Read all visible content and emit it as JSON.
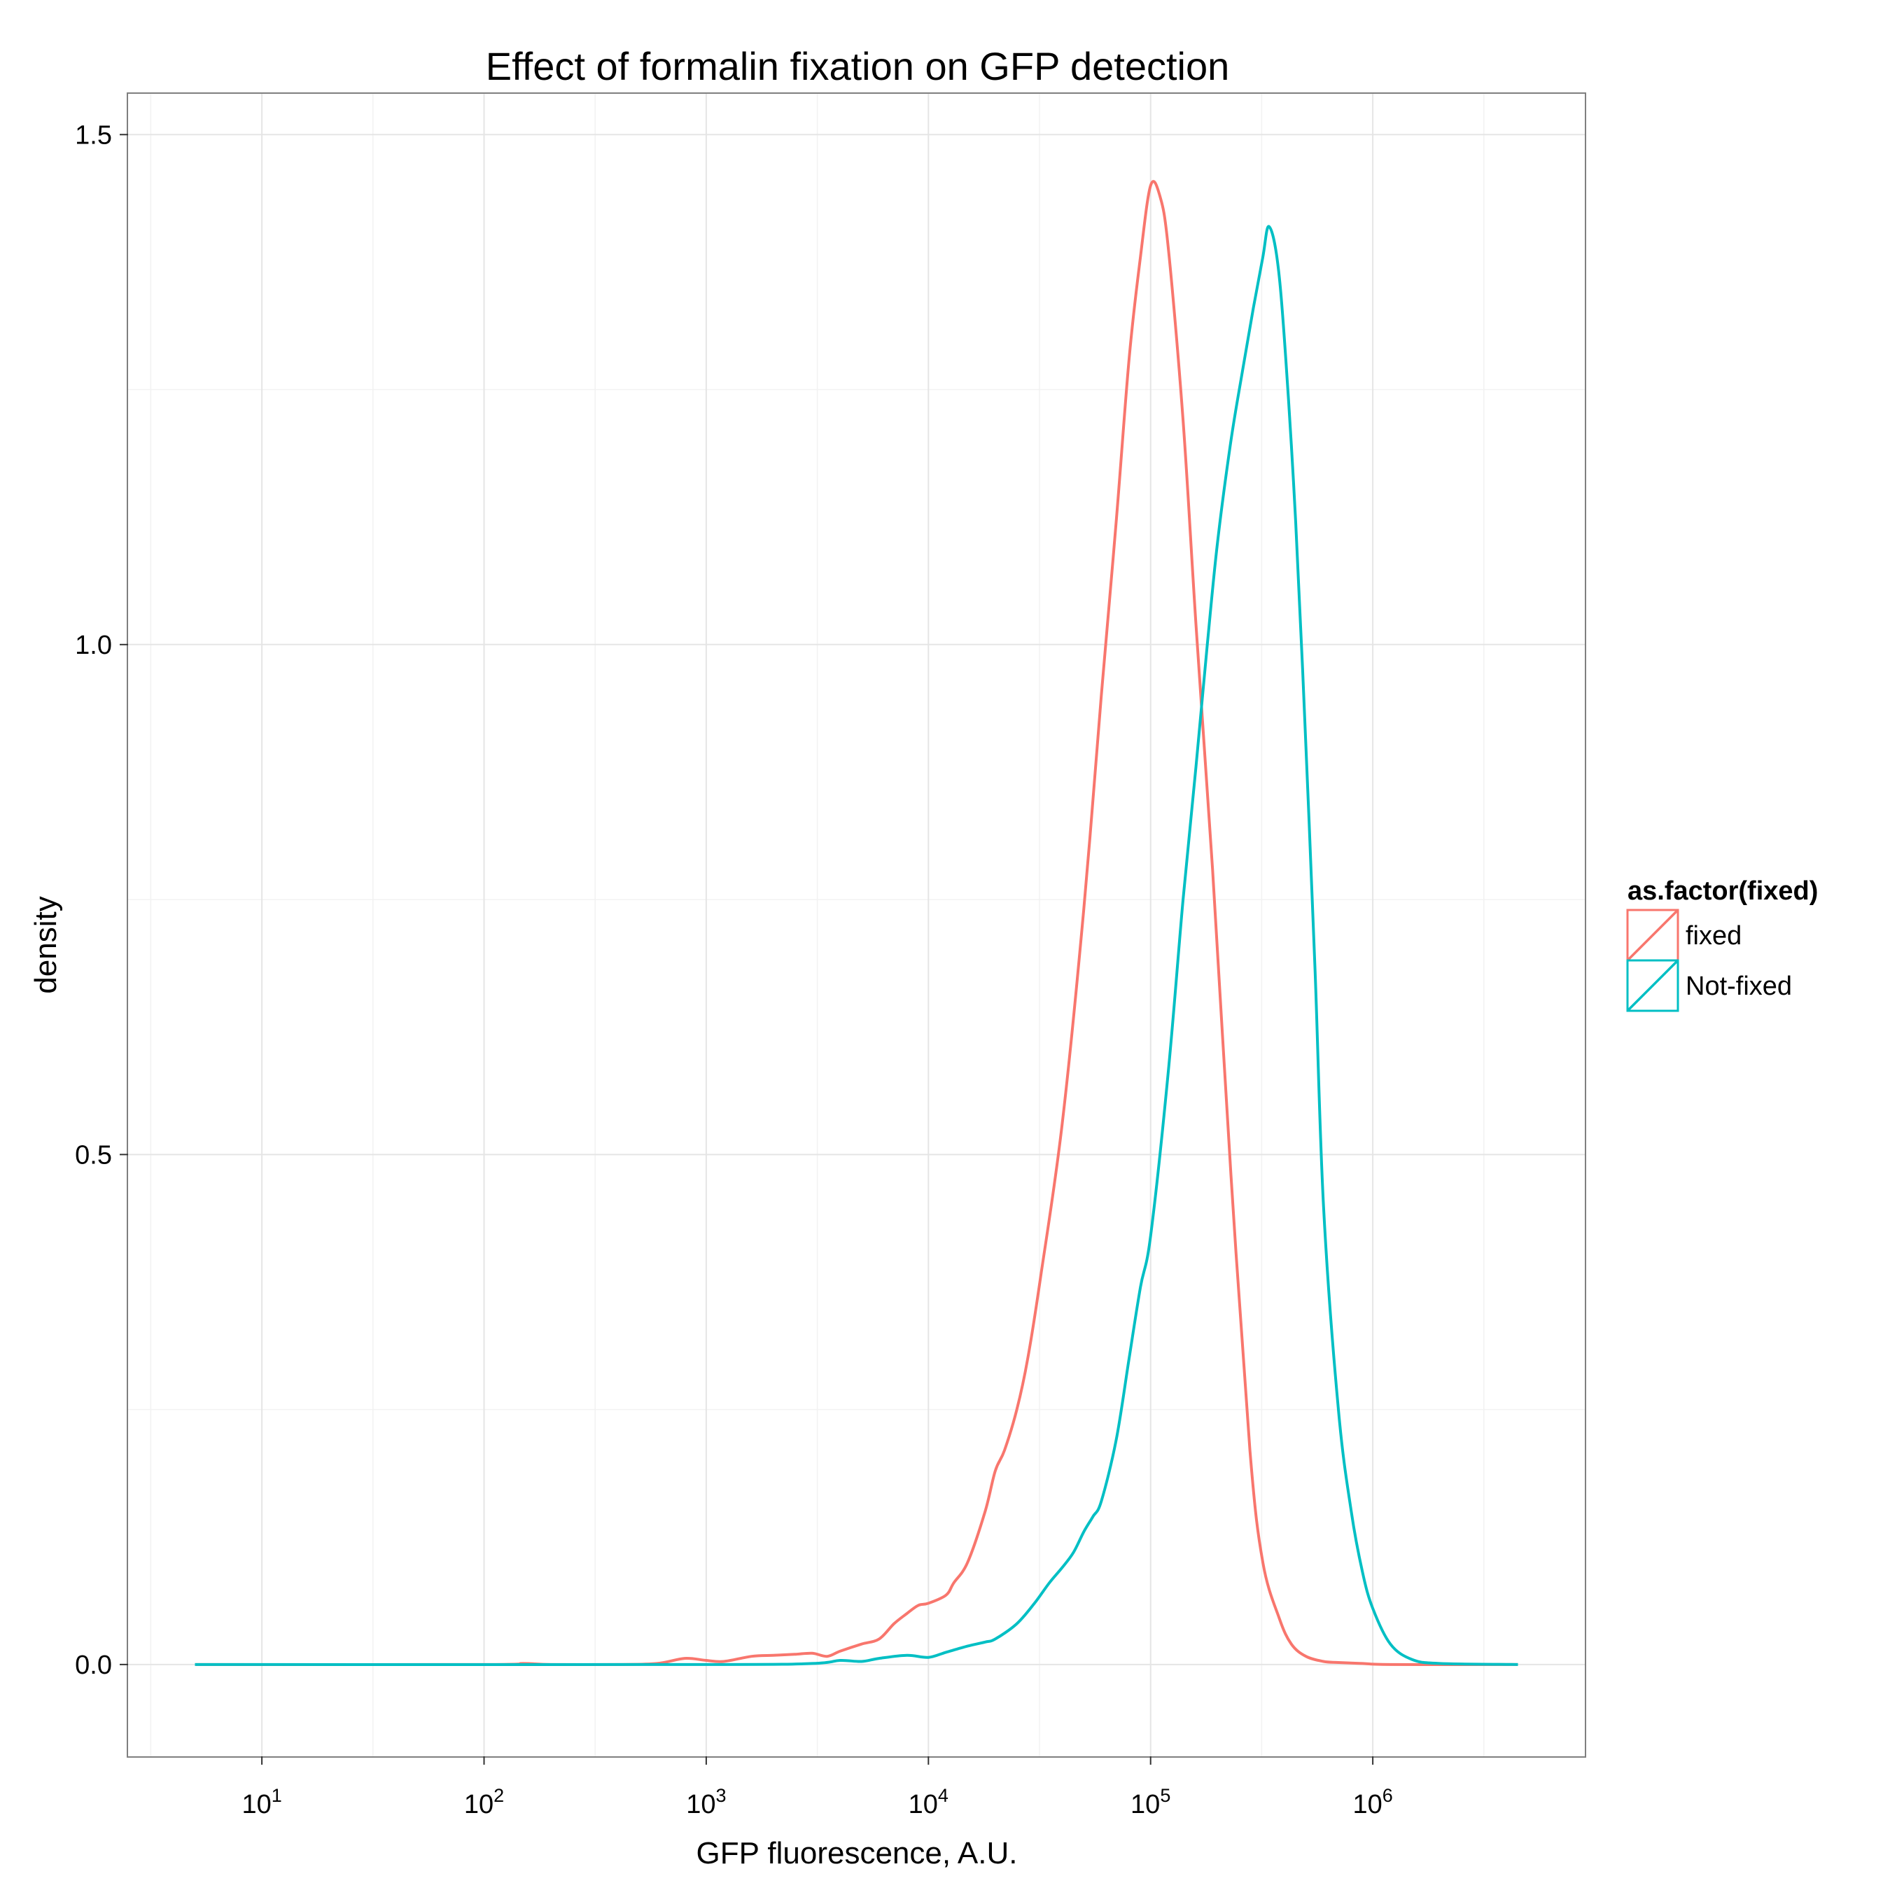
{
  "chart_data": {
    "type": "line",
    "title": "Effect of formalin fixation on GFP detection",
    "xlabel": "GFP fluorescence, A.U.",
    "ylabel": "density",
    "x_scale": "log10",
    "xlim": [
      2.5,
      9000000
    ],
    "ylim": [
      -0.09,
      1.54
    ],
    "x_ticks": [
      {
        "value": 10,
        "base": "10",
        "exp": "1"
      },
      {
        "value": 100,
        "base": "10",
        "exp": "2"
      },
      {
        "value": 1000,
        "base": "10",
        "exp": "3"
      },
      {
        "value": 10000,
        "base": "10",
        "exp": "4"
      },
      {
        "value": 100000,
        "base": "10",
        "exp": "5"
      },
      {
        "value": 1000000,
        "base": "10",
        "exp": "6"
      }
    ],
    "y_ticks": [
      {
        "value": 0.0,
        "label": "0.0"
      },
      {
        "value": 0.5,
        "label": "0.5"
      },
      {
        "value": 1.0,
        "label": "1.0"
      },
      {
        "value": 1.5,
        "label": "1.5"
      }
    ],
    "grid": true,
    "legend": {
      "title": "as.factor(fixed)",
      "position": "right"
    },
    "series": [
      {
        "name": "fixed",
        "color": "#F8766D",
        "x": [
          5,
          100,
          150,
          200,
          400,
          600,
          800,
          1000,
          1200,
          1600,
          2000,
          2500,
          3000,
          3500,
          4000,
          5000,
          6000,
          7000,
          8000,
          9000,
          10000,
          12000,
          13000,
          15000,
          18000,
          20000,
          22000,
          25000,
          28000,
          32000,
          40000,
          50000,
          60000,
          70000,
          80000,
          90000,
          100000,
          110000,
          120000,
          140000,
          160000,
          190000,
          230000,
          280000,
          320000,
          380000,
          430000,
          500000,
          600000,
          700000,
          900000,
          1200000,
          4500000
        ],
        "y": [
          0,
          0,
          0.001,
          0,
          0,
          0.001,
          0.006,
          0.004,
          0.003,
          0.008,
          0.009,
          0.01,
          0.011,
          0.008,
          0.013,
          0.02,
          0.025,
          0.04,
          0.05,
          0.058,
          0.06,
          0.068,
          0.08,
          0.1,
          0.15,
          0.19,
          0.21,
          0.25,
          0.3,
          0.38,
          0.53,
          0.74,
          0.95,
          1.12,
          1.28,
          1.38,
          1.45,
          1.44,
          1.39,
          1.22,
          1.02,
          0.78,
          0.48,
          0.21,
          0.1,
          0.045,
          0.02,
          0.008,
          0.003,
          0.002,
          0.001,
          0,
          0
        ]
      },
      {
        "name": "Not-fixed",
        "color": "#00BFC4",
        "x": [
          5,
          1000,
          3000,
          4000,
          5000,
          6000,
          8000,
          10000,
          12000,
          15000,
          18000,
          20000,
          25000,
          30000,
          35000,
          40000,
          45000,
          50000,
          55000,
          60000,
          70000,
          80000,
          90000,
          100000,
          120000,
          140000,
          160000,
          180000,
          200000,
          230000,
          260000,
          290000,
          320000,
          340000,
          370000,
          400000,
          450000,
          500000,
          550000,
          600000,
          700000,
          800000,
          900000,
          1000000,
          1200000,
          1500000,
          2000000,
          4500000
        ],
        "y": [
          0,
          0,
          0.001,
          0.004,
          0.003,
          0.006,
          0.009,
          0.007,
          0.012,
          0.018,
          0.022,
          0.025,
          0.04,
          0.06,
          0.08,
          0.095,
          0.11,
          0.13,
          0.145,
          0.16,
          0.22,
          0.3,
          0.37,
          0.42,
          0.58,
          0.75,
          0.88,
          1.0,
          1.1,
          1.2,
          1.27,
          1.33,
          1.38,
          1.41,
          1.38,
          1.3,
          1.12,
          0.9,
          0.68,
          0.45,
          0.25,
          0.15,
          0.09,
          0.055,
          0.02,
          0.005,
          0.001,
          0
        ]
      }
    ]
  }
}
